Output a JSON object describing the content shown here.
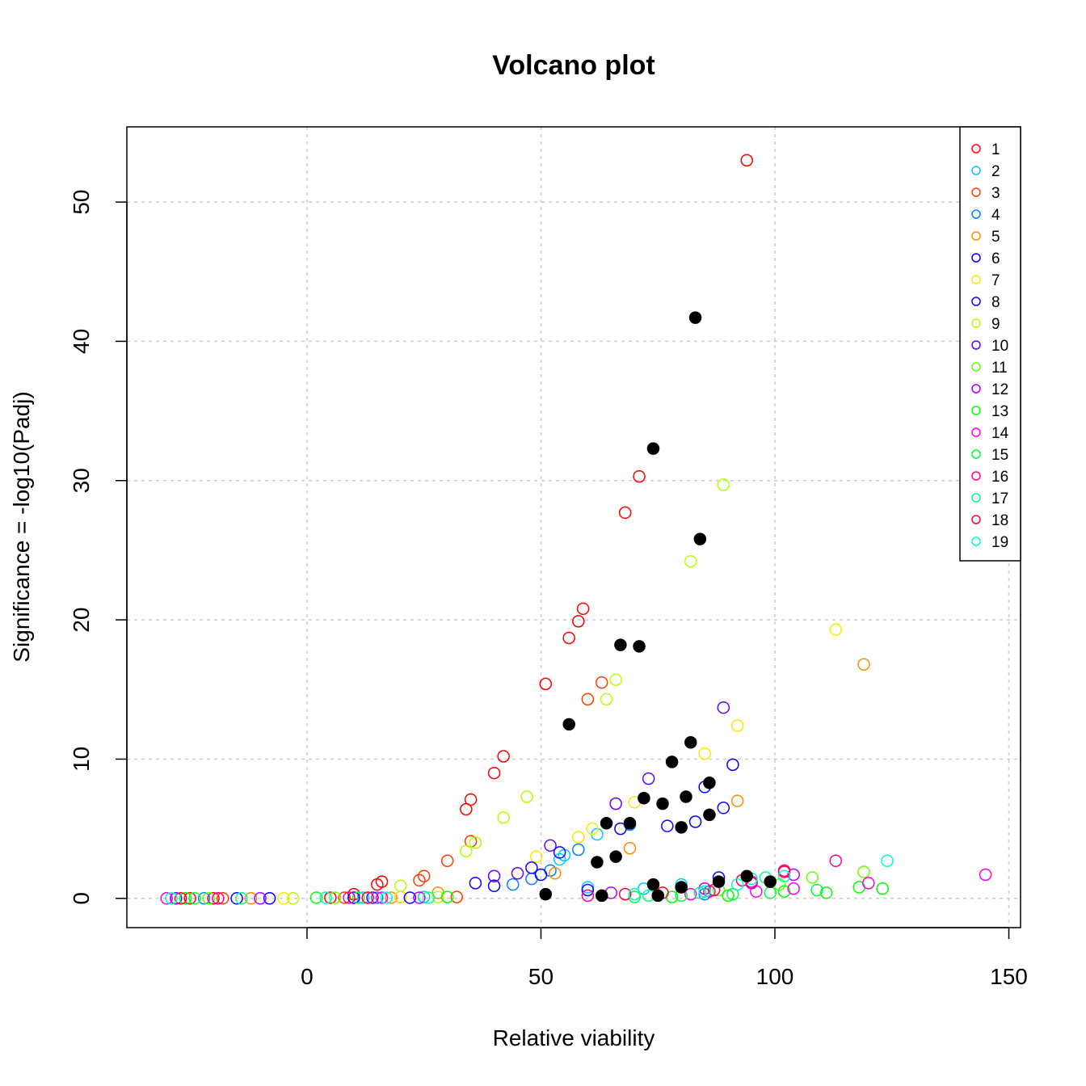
{
  "chart_data": {
    "type": "scatter",
    "title": "Volcano plot",
    "xlabel": "Relative viability",
    "ylabel": "Significance = -log10(Padj)",
    "xlim": [
      -38.5,
      152.5
    ],
    "ylim": [
      -2.1,
      55.4
    ],
    "xticks": [
      0,
      50,
      100,
      150
    ],
    "yticks": [
      0,
      10,
      20,
      30,
      40,
      50
    ],
    "grid": true,
    "legend_position": "top-right",
    "point_style": "open-circle",
    "series": [
      {
        "name": "1",
        "color": "#FF0000",
        "points": [
          [
            94,
            53.0
          ],
          [
            71,
            30.3
          ],
          [
            68,
            27.7
          ],
          [
            59,
            20.8
          ],
          [
            58,
            19.9
          ],
          [
            56,
            18.7
          ],
          [
            51,
            15.4
          ],
          [
            42,
            10.2
          ],
          [
            40,
            9.0
          ],
          [
            35,
            7.1
          ],
          [
            34,
            6.4
          ],
          [
            16,
            1.2
          ],
          [
            15,
            1.0
          ],
          [
            10,
            0.3
          ],
          [
            -25,
            0
          ],
          [
            -20,
            0
          ],
          [
            5,
            0.05
          ],
          [
            20,
            0.1
          ]
        ]
      },
      {
        "name": "2",
        "color": "#00C8FF",
        "points": [
          [
            62,
            4.6
          ],
          [
            54,
            2.8
          ],
          [
            55,
            3.1
          ],
          [
            60,
            0.8
          ],
          [
            72,
            0.7
          ],
          [
            80,
            1.0
          ],
          [
            -30,
            0
          ],
          [
            12,
            0.05
          ],
          [
            25,
            0.1
          ]
        ]
      },
      {
        "name": "3",
        "color": "#FF3C00",
        "points": [
          [
            63,
            15.5
          ],
          [
            60,
            14.3
          ],
          [
            35,
            4.1
          ],
          [
            30,
            2.7
          ],
          [
            25,
            1.6
          ],
          [
            24,
            1.3
          ],
          [
            -18,
            0
          ],
          [
            8,
            0.05
          ],
          [
            32,
            0.1
          ]
        ]
      },
      {
        "name": "4",
        "color": "#0080FF",
        "points": [
          [
            69,
            5.3
          ],
          [
            58,
            3.5
          ],
          [
            52,
            2.0
          ],
          [
            48,
            1.4
          ],
          [
            44,
            1.0
          ],
          [
            85,
            0.3
          ],
          [
            -22,
            0
          ],
          [
            15,
            0.05
          ]
        ]
      },
      {
        "name": "5",
        "color": "#FF8C00",
        "points": [
          [
            119,
            16.8
          ],
          [
            92,
            7.0
          ],
          [
            69,
            3.6
          ],
          [
            53,
            1.8
          ],
          [
            28,
            0.4
          ],
          [
            -12,
            0
          ],
          [
            18,
            0.05
          ]
        ]
      },
      {
        "name": "6",
        "color": "#0000FF",
        "points": [
          [
            91,
            9.6
          ],
          [
            85,
            8.0
          ],
          [
            83,
            5.5
          ],
          [
            67,
            5.0
          ],
          [
            50,
            1.7
          ],
          [
            40,
            0.9
          ],
          [
            88,
            1.5
          ],
          [
            -8,
            0
          ],
          [
            10,
            0.05
          ]
        ]
      },
      {
        "name": "7",
        "color": "#FFE600",
        "points": [
          [
            113,
            19.3
          ],
          [
            92,
            12.4
          ],
          [
            85,
            10.4
          ],
          [
            70,
            6.9
          ],
          [
            61,
            5.0
          ],
          [
            58,
            4.4
          ],
          [
            49,
            3.0
          ],
          [
            -5,
            0
          ],
          [
            20,
            0.1
          ]
        ]
      },
      {
        "name": "8",
        "color": "#1400FF",
        "points": [
          [
            89,
            6.5
          ],
          [
            77,
            5.2
          ],
          [
            54,
            3.3
          ],
          [
            48,
            2.2
          ],
          [
            36,
            1.1
          ],
          [
            60,
            0.6
          ],
          [
            -15,
            0
          ],
          [
            22,
            0.05
          ]
        ]
      },
      {
        "name": "9",
        "color": "#B4FF00",
        "points": [
          [
            89,
            29.7
          ],
          [
            82,
            24.2
          ],
          [
            66,
            15.7
          ],
          [
            64,
            14.3
          ],
          [
            47,
            7.3
          ],
          [
            42,
            5.8
          ],
          [
            36,
            4.0
          ],
          [
            34,
            3.4
          ],
          [
            20,
            0.9
          ],
          [
            -3,
            0
          ],
          [
            28,
            0.1
          ]
        ]
      },
      {
        "name": "10",
        "color": "#6400FF",
        "points": [
          [
            89,
            13.7
          ],
          [
            73,
            8.6
          ],
          [
            66,
            6.8
          ],
          [
            52,
            3.8
          ],
          [
            45,
            1.8
          ],
          [
            40,
            1.6
          ],
          [
            -28,
            0
          ],
          [
            14,
            0.05
          ]
        ]
      },
      {
        "name": "11",
        "color": "#64FF00",
        "points": [
          [
            119,
            1.9
          ],
          [
            108,
            1.5
          ],
          [
            101,
            1.0
          ],
          [
            88,
            0.6
          ],
          [
            75,
            0.2
          ],
          [
            -21,
            0
          ],
          [
            6,
            0.05
          ]
        ]
      },
      {
        "name": "12",
        "color": "#B400FF",
        "points": [
          [
            104,
            1.7
          ],
          [
            95,
            1.1
          ],
          [
            85,
            0.7
          ],
          [
            65,
            0.4
          ],
          [
            -10,
            0
          ],
          [
            24,
            0.05
          ]
        ]
      },
      {
        "name": "13",
        "color": "#00FF00",
        "points": [
          [
            123,
            0.7
          ],
          [
            118,
            0.8
          ],
          [
            111,
            0.4
          ],
          [
            102,
            0.5
          ],
          [
            90,
            0.2
          ],
          [
            78,
            0.1
          ],
          [
            -26,
            0
          ],
          [
            2,
            0.05
          ],
          [
            30,
            0.1
          ]
        ]
      },
      {
        "name": "14",
        "color": "#FF00E6",
        "points": [
          [
            145,
            1.7
          ],
          [
            120,
            1.1
          ],
          [
            104,
            0.7
          ],
          [
            96,
            0.5
          ],
          [
            82,
            0.3
          ],
          [
            -30,
            0
          ],
          [
            16,
            0.05
          ]
        ]
      },
      {
        "name": "15",
        "color": "#00FF3C",
        "points": [
          [
            109,
            0.6
          ],
          [
            99,
            0.4
          ],
          [
            91,
            0.3
          ],
          [
            80,
            0.2
          ],
          [
            70,
            0.1
          ],
          [
            -24,
            0
          ],
          [
            11,
            0.05
          ]
        ]
      },
      {
        "name": "16",
        "color": "#FF0096",
        "points": [
          [
            113,
            2.7
          ],
          [
            102,
            2.0
          ],
          [
            95,
            1.2
          ],
          [
            86,
            0.5
          ],
          [
            60,
            0.2
          ],
          [
            -19,
            0
          ],
          [
            9,
            0.05
          ]
        ]
      },
      {
        "name": "17",
        "color": "#00FF8C",
        "points": [
          [
            98,
            1.5
          ],
          [
            95,
            1.4
          ],
          [
            84,
            0.4
          ],
          [
            73,
            0.2
          ],
          [
            -14,
            0
          ],
          [
            26,
            0.05
          ]
        ]
      },
      {
        "name": "18",
        "color": "#FF003C",
        "points": [
          [
            102,
            1.9
          ],
          [
            93,
            1.3
          ],
          [
            87,
            0.6
          ],
          [
            76,
            0.4
          ],
          [
            68,
            0.3
          ],
          [
            -27,
            0
          ],
          [
            13,
            0.05
          ]
        ]
      },
      {
        "name": "19",
        "color": "#00FFC8",
        "points": [
          [
            124,
            2.7
          ],
          [
            102,
            1.6
          ],
          [
            92,
            1.0
          ],
          [
            85,
            0.5
          ],
          [
            70,
            0.3
          ],
          [
            -29,
            0
          ],
          [
            4,
            0.05
          ],
          [
            17,
            0.05
          ]
        ]
      },
      {
        "name": "",
        "color": "#000000",
        "filled": true,
        "points": [
          [
            83,
            41.7
          ],
          [
            74,
            32.3
          ],
          [
            84,
            25.8
          ],
          [
            67,
            18.2
          ],
          [
            71,
            18.1
          ],
          [
            56,
            12.5
          ],
          [
            82,
            11.2
          ],
          [
            78,
            9.8
          ],
          [
            86,
            8.3
          ],
          [
            81,
            7.3
          ],
          [
            72,
            7.2
          ],
          [
            76,
            6.8
          ],
          [
            86,
            6.0
          ],
          [
            80,
            5.1
          ],
          [
            64,
            5.4
          ],
          [
            69,
            5.4
          ],
          [
            66,
            3.0
          ],
          [
            62,
            2.6
          ],
          [
            94,
            1.6
          ],
          [
            88,
            1.2
          ],
          [
            99,
            1.2
          ],
          [
            74,
            1.0
          ],
          [
            80,
            0.8
          ],
          [
            51,
            0.3
          ],
          [
            63,
            0.2
          ],
          [
            75,
            0.2
          ]
        ]
      }
    ]
  }
}
